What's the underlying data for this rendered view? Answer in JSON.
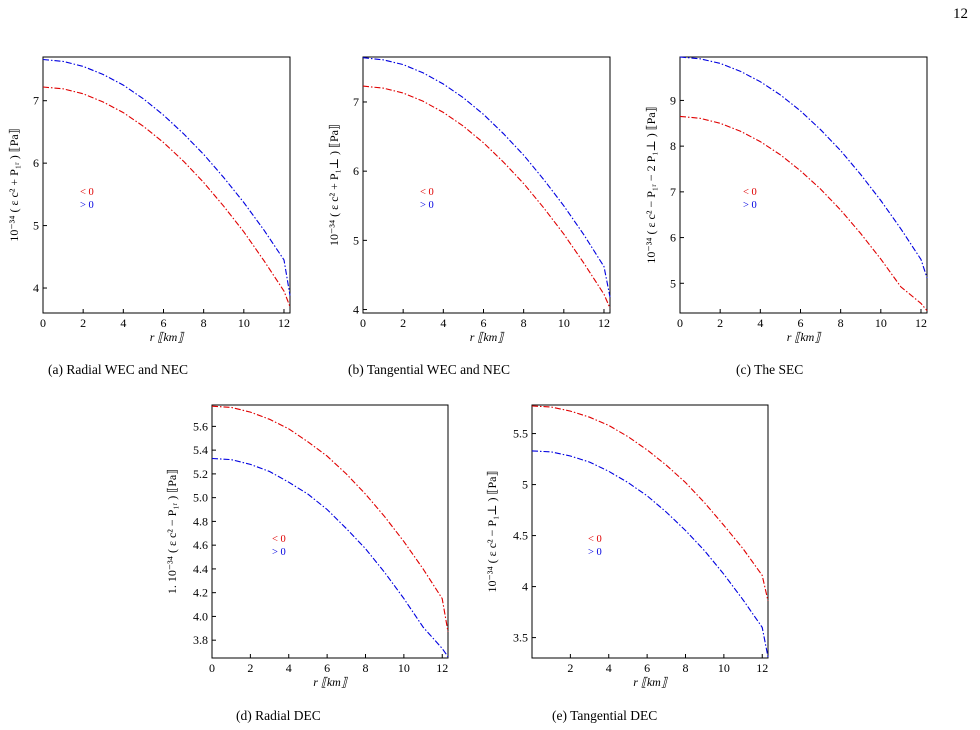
{
  "page_number": "12",
  "chart_data": [
    {
      "type": "line",
      "caption": "(a) Radial WEC and NEC",
      "ylabel": "10⁻³⁴ ( ε c² + P₁ᵣ ) ⟦Pa⟧",
      "xlabel": "r ⟦km⟧",
      "xlim": [
        0,
        12.3
      ],
      "ylim": [
        3.6,
        7.7
      ],
      "xticks": [
        "0",
        "2",
        "4",
        "6",
        "8",
        "10",
        "12"
      ],
      "yticks": [
        "4",
        "5",
        "6",
        "7"
      ],
      "legend": {
        "red": "< 0",
        "blue": "> 0"
      },
      "series": [
        {
          "color": "#e00000",
          "x": [
            0,
            1,
            2,
            3,
            4,
            5,
            6,
            7,
            8,
            9,
            10,
            11,
            12,
            12.3
          ],
          "values": [
            7.22,
            7.19,
            7.11,
            6.98,
            6.81,
            6.59,
            6.33,
            6.03,
            5.69,
            5.31,
            4.9,
            4.44,
            3.95,
            3.7
          ]
        },
        {
          "color": "#0000e0",
          "x": [
            0,
            1,
            2,
            3,
            4,
            5,
            6,
            7,
            8,
            9,
            10,
            11,
            12,
            12.3
          ],
          "values": [
            7.66,
            7.63,
            7.55,
            7.42,
            7.25,
            7.03,
            6.77,
            6.47,
            6.14,
            5.77,
            5.37,
            4.93,
            4.45,
            3.88
          ]
        }
      ]
    },
    {
      "type": "line",
      "caption": "(b) Tangential WEC and NEC",
      "ylabel": "10⁻³⁴ ( ε c² + P₁⊥ ) ⟦Pa⟧",
      "xlabel": "r ⟦km⟧",
      "xlim": [
        0,
        12.3
      ],
      "ylim": [
        3.95,
        7.65
      ],
      "xticks": [
        "0",
        "2",
        "4",
        "6",
        "8",
        "10",
        "12"
      ],
      "yticks": [
        "4",
        "5",
        "6",
        "7"
      ],
      "legend": {
        "red": "< 0",
        "blue": "> 0"
      },
      "series": [
        {
          "color": "#e00000",
          "x": [
            0,
            1,
            2,
            3,
            4,
            5,
            6,
            7,
            8,
            9,
            10,
            11,
            12,
            12.3
          ],
          "values": [
            7.23,
            7.2,
            7.13,
            7.01,
            6.85,
            6.65,
            6.41,
            6.13,
            5.82,
            5.47,
            5.09,
            4.67,
            4.22,
            4.02
          ]
        },
        {
          "color": "#0000e0",
          "x": [
            0,
            1,
            2,
            3,
            4,
            5,
            6,
            7,
            8,
            9,
            10,
            11,
            12,
            12.3
          ],
          "values": [
            7.64,
            7.61,
            7.54,
            7.42,
            7.26,
            7.06,
            6.82,
            6.54,
            6.23,
            5.88,
            5.5,
            5.08,
            4.62,
            4.18
          ]
        }
      ]
    },
    {
      "type": "line",
      "caption": "(c) The SEC",
      "ylabel": "10⁻³⁴ ( ε c² − P₁ᵣ − 2 P₁⊥ ) ⟦Pa⟧",
      "xlabel": "r ⟦km⟧",
      "xlim": [
        0,
        12.3
      ],
      "ylim": [
        4.35,
        9.95
      ],
      "xticks": [
        "0",
        "2",
        "4",
        "6",
        "8",
        "10",
        "12"
      ],
      "yticks": [
        "5",
        "6",
        "7",
        "8",
        "9"
      ],
      "legend": {
        "red": "< 0",
        "blue": "> 0"
      },
      "series": [
        {
          "color": "#e00000",
          "x": [
            0,
            1,
            2,
            3,
            4,
            5,
            6,
            7,
            8,
            9,
            10,
            11,
            12,
            12.3
          ],
          "values": [
            8.65,
            8.61,
            8.5,
            8.33,
            8.1,
            7.81,
            7.46,
            7.06,
            6.6,
            6.09,
            5.53,
            4.92,
            4.56,
            4.4
          ]
        },
        {
          "color": "#0000e0",
          "x": [
            0,
            1,
            2,
            3,
            4,
            5,
            6,
            7,
            8,
            9,
            10,
            11,
            12,
            12.3
          ],
          "values": [
            9.95,
            9.91,
            9.81,
            9.64,
            9.41,
            9.12,
            8.77,
            8.36,
            7.9,
            7.38,
            6.81,
            6.19,
            5.52,
            5.12
          ]
        }
      ]
    },
    {
      "type": "line",
      "caption": "(d)  Radial DEC",
      "ylabel": "1. 10⁻³⁴ ( ε c² − P₁ᵣ ) ⟦Pa⟧",
      "xlabel": "r ⟦km⟧",
      "xlim": [
        0,
        12.3
      ],
      "ylim": [
        3.65,
        5.78
      ],
      "xticks": [
        "0",
        "2",
        "4",
        "6",
        "8",
        "10",
        "12"
      ],
      "yticks": [
        "3.8",
        "4.0",
        "4.2",
        "4.4",
        "4.6",
        "4.8",
        "5.0",
        "5.2",
        "5.4",
        "5.6"
      ],
      "legend": {
        "red": "< 0",
        "blue": "> 0"
      },
      "series": [
        {
          "color": "#e00000",
          "x": [
            0,
            1,
            2,
            3,
            4,
            5,
            6,
            7,
            8,
            9,
            10,
            11,
            12,
            12.3
          ],
          "values": [
            5.77,
            5.76,
            5.72,
            5.66,
            5.58,
            5.47,
            5.35,
            5.2,
            5.03,
            4.84,
            4.63,
            4.4,
            4.15,
            3.87
          ]
        },
        {
          "color": "#0000e0",
          "x": [
            0,
            1,
            2,
            3,
            4,
            5,
            6,
            7,
            8,
            9,
            10,
            11,
            12,
            12.3
          ],
          "values": [
            5.33,
            5.32,
            5.28,
            5.22,
            5.13,
            5.03,
            4.9,
            4.74,
            4.57,
            4.37,
            4.15,
            3.91,
            3.73,
            3.66
          ]
        }
      ]
    },
    {
      "type": "line",
      "caption": "(e) Tangential DEC",
      "ylabel": "10⁻³⁴ ( ε c² − P₁⊥ ) ⟦Pa⟧",
      "xlabel": "r ⟦km⟧",
      "xlim": [
        0,
        12.3
      ],
      "ylim": [
        3.3,
        5.78
      ],
      "xticks": [
        "2",
        "4",
        "6",
        "8",
        "10",
        "12"
      ],
      "yticks": [
        "3.5",
        "4",
        "4.5",
        "5",
        "5.5"
      ],
      "legend": {
        "red": "< 0",
        "blue": "> 0"
      },
      "series": [
        {
          "color": "#e00000",
          "x": [
            0,
            1,
            2,
            3,
            4,
            5,
            6,
            7,
            8,
            9,
            10,
            11,
            12,
            12.3
          ],
          "values": [
            5.77,
            5.76,
            5.72,
            5.66,
            5.58,
            5.47,
            5.34,
            5.19,
            5.02,
            4.82,
            4.6,
            4.37,
            4.11,
            3.86
          ]
        },
        {
          "color": "#0000e0",
          "x": [
            0,
            1,
            2,
            3,
            4,
            5,
            6,
            7,
            8,
            9,
            10,
            11,
            12,
            12.3
          ],
          "values": [
            5.33,
            5.32,
            5.28,
            5.22,
            5.13,
            5.02,
            4.89,
            4.73,
            4.55,
            4.35,
            4.12,
            3.87,
            3.6,
            3.31
          ]
        }
      ]
    }
  ]
}
